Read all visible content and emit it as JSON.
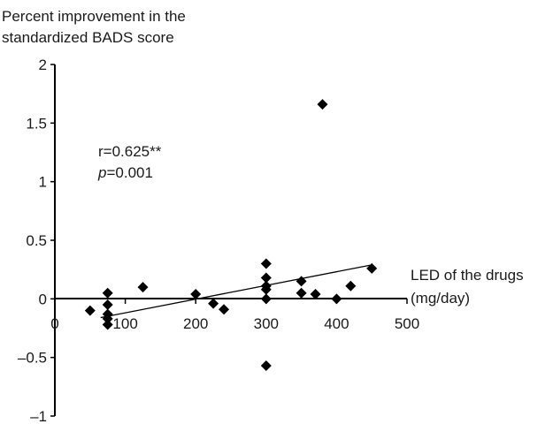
{
  "chart_data": {
    "type": "scatter",
    "ylabel_line1": "Percent improvement in the",
    "ylabel_line2": "standardized BADS score",
    "xlabel_line1": "LED of the drugs",
    "xlabel_line2": "(mg/day)",
    "annotation_r": "r=0.625**",
    "annotation_p_symbol": "p",
    "annotation_p_value": "=0.001",
    "xlim": [
      0,
      500
    ],
    "ylim": [
      -1,
      2
    ],
    "x_ticks": [
      {
        "value": 0,
        "label": "0"
      },
      {
        "value": 100,
        "label": "100"
      },
      {
        "value": 200,
        "label": "200"
      },
      {
        "value": 300,
        "label": "300"
      },
      {
        "value": 400,
        "label": "400"
      },
      {
        "value": 500,
        "label": "500"
      }
    ],
    "y_ticks": [
      {
        "value": 2,
        "label": "2"
      },
      {
        "value": 1.5,
        "label": "1.5"
      },
      {
        "value": 1,
        "label": "1"
      },
      {
        "value": 0.5,
        "label": "0.5"
      },
      {
        "value": 0,
        "label": "0"
      },
      {
        "value": -0.5,
        "label": "–0.5"
      },
      {
        "value": -1,
        "label": "–1"
      }
    ],
    "points": [
      {
        "x": 50,
        "y": -0.1
      },
      {
        "x": 75,
        "y": 0.05
      },
      {
        "x": 75,
        "y": -0.05
      },
      {
        "x": 75,
        "y": -0.13
      },
      {
        "x": 75,
        "y": -0.17
      },
      {
        "x": 75,
        "y": -0.22
      },
      {
        "x": 125,
        "y": 0.1
      },
      {
        "x": 200,
        "y": 0.04
      },
      {
        "x": 225,
        "y": -0.04
      },
      {
        "x": 240,
        "y": -0.09
      },
      {
        "x": 300,
        "y": 0.3
      },
      {
        "x": 300,
        "y": 0.18
      },
      {
        "x": 300,
        "y": 0.11
      },
      {
        "x": 300,
        "y": 0.08
      },
      {
        "x": 300,
        "y": 0.0
      },
      {
        "x": 300,
        "y": -0.57
      },
      {
        "x": 350,
        "y": 0.15
      },
      {
        "x": 350,
        "y": 0.05
      },
      {
        "x": 370,
        "y": 0.04
      },
      {
        "x": 380,
        "y": 1.66
      },
      {
        "x": 400,
        "y": 0.0
      },
      {
        "x": 420,
        "y": 0.11
      },
      {
        "x": 450,
        "y": 0.26
      }
    ],
    "trendline": {
      "x1": 65,
      "y1": -0.16,
      "x2": 450,
      "y2": 0.29
    },
    "marker": "diamond",
    "marker_color": "#000000",
    "grid": false,
    "legend": "none"
  }
}
